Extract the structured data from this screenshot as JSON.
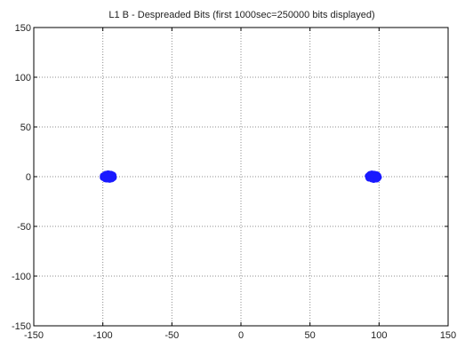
{
  "chart_data": {
    "type": "scatter",
    "title": "L1 B - Despreaded Bits (first 1000sec=250000 bits displayed)",
    "xlabel": "",
    "ylabel": "",
    "xlim": [
      -150,
      150
    ],
    "ylim": [
      -150,
      150
    ],
    "xticks": [
      -150,
      -100,
      -50,
      0,
      50,
      100,
      150
    ],
    "yticks": [
      -150,
      -100,
      -50,
      0,
      50,
      100,
      150
    ],
    "x_tick_labels": [
      "-150",
      "-100",
      "-50",
      "0",
      "50",
      "100",
      "150"
    ],
    "y_tick_labels": [
      "-150",
      "-100",
      "-50",
      "0",
      "50",
      "100",
      "150"
    ],
    "grid": true,
    "grid_style": "dotted",
    "series": [
      {
        "color": "#1a1aff",
        "clusters": [
          {
            "x_center": -96,
            "y_center": 0,
            "x_spread": 4,
            "y_spread": 3
          },
          {
            "x_center": 96,
            "y_center": 0,
            "x_spread": 4,
            "y_spread": 3
          }
        ]
      }
    ]
  }
}
